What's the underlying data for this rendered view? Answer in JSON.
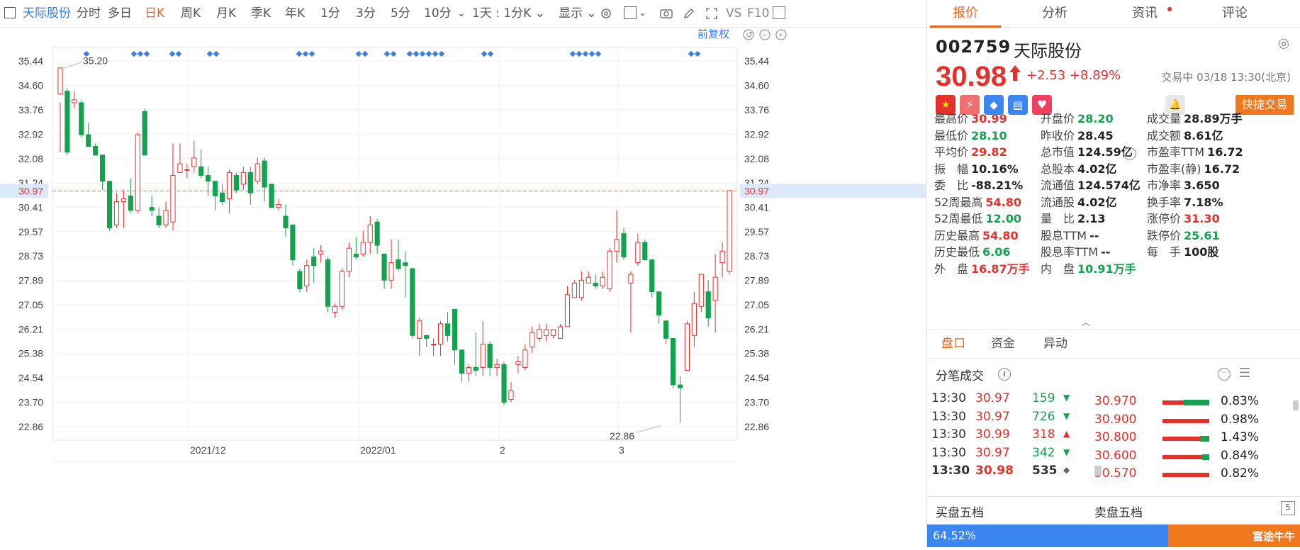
{
  "topbar": {
    "stock_name": "天际股份",
    "periods": [
      "分时",
      "多日",
      "日K",
      "周K",
      "月K",
      "季K",
      "年K",
      "1分",
      "3分",
      "5分",
      "10分"
    ],
    "active_period": "日K",
    "interval_select": "1天 : 1分K",
    "display_label": "显示",
    "vs_label": "VS",
    "f10_label": "F10"
  },
  "chart": {
    "adjust_label": "前复权",
    "y_ticks": [
      "35.44",
      "34.60",
      "33.76",
      "32.92",
      "32.08",
      "31.24",
      "30.41",
      "29.57",
      "28.73",
      "27.89",
      "27.05",
      "26.21",
      "25.38",
      "24.54",
      "23.70",
      "22.86"
    ],
    "current_line_label": "30.97",
    "x_labels": [
      "2021/12",
      "2022/01",
      "2",
      "3"
    ],
    "max_label": "35.20",
    "min_label": "22.86",
    "colors": {
      "up": "#e5302c",
      "down": "#13a24f",
      "marker": "#3b7de9"
    }
  },
  "chart_data": {
    "type": "candlestick",
    "y_range": [
      22.4,
      35.9
    ],
    "candles": [
      [
        34.3,
        35.2,
        34.0,
        32.3
      ],
      [
        34.4,
        32.3,
        34.5,
        32.2
      ],
      [
        34.0,
        34.1,
        34.4,
        33.8
      ],
      [
        34.0,
        32.9,
        34.1,
        32.8
      ],
      [
        32.9,
        32.5,
        33.3,
        32.5
      ],
      [
        32.5,
        32.2,
        32.6,
        32.2
      ],
      [
        32.2,
        31.3,
        32.2,
        31.0
      ],
      [
        31.3,
        29.7,
        31.3,
        29.6
      ],
      [
        29.8,
        30.6,
        30.9,
        29.7
      ],
      [
        30.6,
        30.7,
        31.0,
        29.7
      ],
      [
        30.8,
        30.3,
        31.4,
        30.2
      ],
      [
        30.3,
        32.9,
        33.0,
        30.2
      ],
      [
        33.7,
        32.2,
        33.8,
        32.2
      ],
      [
        30.4,
        30.3,
        30.8,
        30.1
      ],
      [
        30.1,
        29.8,
        30.4,
        29.7
      ],
      [
        29.8,
        30.3,
        30.6,
        29.7
      ],
      [
        29.9,
        31.5,
        32.6,
        29.6
      ],
      [
        31.6,
        31.9,
        32.6,
        31.6
      ],
      [
        31.7,
        31.7,
        31.9,
        31.4
      ],
      [
        31.8,
        32.1,
        32.7,
        31.6
      ],
      [
        31.8,
        31.5,
        32.4,
        31.4
      ],
      [
        31.5,
        31.3,
        31.8,
        30.8
      ],
      [
        31.3,
        30.8,
        31.3,
        30.3
      ],
      [
        30.9,
        30.6,
        31.2,
        30.5
      ],
      [
        30.7,
        31.6,
        31.7,
        30.2
      ],
      [
        31.5,
        31.0,
        31.6,
        30.9
      ],
      [
        31.2,
        31.6,
        31.8,
        31.0
      ],
      [
        31.6,
        30.9,
        31.8,
        30.5
      ],
      [
        31.3,
        31.9,
        32.1,
        31.2
      ],
      [
        32.0,
        31.1,
        32.1,
        30.6
      ],
      [
        31.2,
        30.4,
        31.2,
        30.4
      ],
      [
        30.4,
        30.5,
        30.7,
        30.3
      ],
      [
        30.1,
        29.7,
        30.5,
        29.4
      ],
      [
        29.8,
        28.6,
        29.8,
        28.4
      ],
      [
        28.2,
        27.6,
        28.3,
        27.5
      ],
      [
        27.7,
        28.4,
        28.6,
        27.5
      ],
      [
        28.7,
        28.4,
        29.0,
        27.8
      ],
      [
        28.8,
        28.9,
        29.1,
        28.5
      ],
      [
        28.6,
        27.0,
        28.7,
        26.8
      ],
      [
        26.8,
        27.0,
        27.1,
        26.6
      ],
      [
        27.0,
        28.2,
        28.3,
        26.9
      ],
      [
        28.2,
        29.0,
        29.2,
        28.0
      ],
      [
        28.8,
        28.7,
        29.4,
        28.6
      ],
      [
        28.8,
        29.2,
        29.6,
        28.7
      ],
      [
        29.2,
        29.8,
        30.1,
        28.8
      ],
      [
        29.9,
        29.1,
        30.0,
        28.8
      ],
      [
        28.8,
        27.9,
        28.8,
        27.6
      ],
      [
        27.9,
        28.5,
        29.3,
        27.6
      ],
      [
        28.6,
        28.3,
        29.3,
        28.2
      ],
      [
        28.5,
        28.4,
        28.9,
        27.3
      ],
      [
        28.3,
        26.0,
        28.3,
        25.9
      ],
      [
        25.9,
        26.5,
        26.6,
        25.3
      ],
      [
        26.0,
        25.9,
        26.0,
        25.6
      ],
      [
        25.7,
        25.7,
        25.9,
        25.3
      ],
      [
        25.7,
        26.4,
        26.5,
        25.3
      ],
      [
        26.4,
        26.0,
        26.8,
        25.8
      ],
      [
        26.9,
        25.5,
        26.9,
        25.0
      ],
      [
        25.5,
        24.7,
        25.5,
        24.4
      ],
      [
        24.7,
        24.9,
        25.0,
        24.4
      ],
      [
        24.9,
        24.8,
        26.1,
        24.6
      ],
      [
        24.9,
        25.7,
        26.5,
        24.6
      ],
      [
        25.7,
        24.9,
        25.8,
        24.6
      ],
      [
        24.9,
        25.0,
        25.2,
        24.6
      ],
      [
        25.0,
        23.7,
        25.1,
        23.6
      ],
      [
        23.8,
        24.1,
        24.4,
        23.7
      ],
      [
        25.0,
        25.1,
        25.3,
        24.7
      ],
      [
        24.9,
        25.5,
        25.7,
        24.8
      ],
      [
        25.6,
        26.1,
        26.3,
        25.4
      ],
      [
        25.9,
        26.2,
        26.4,
        25.8
      ],
      [
        26.0,
        26.2,
        26.4,
        25.8
      ],
      [
        26.0,
        26.2,
        26.2,
        25.9
      ],
      [
        25.9,
        26.3,
        26.4,
        25.9
      ],
      [
        26.3,
        27.4,
        27.7,
        26.3
      ],
      [
        27.3,
        27.8,
        27.9,
        27.3
      ],
      [
        27.3,
        27.9,
        28.2,
        27.2
      ],
      [
        27.8,
        28.0,
        28.2,
        27.8
      ],
      [
        27.8,
        27.7,
        28.1,
        27.6
      ],
      [
        27.7,
        28.0,
        28.2,
        27.6
      ],
      [
        27.6,
        28.9,
        29.0,
        27.5
      ],
      [
        28.9,
        29.3,
        30.3,
        28.5
      ],
      [
        29.5,
        28.7,
        29.7,
        28.6
      ],
      [
        27.8,
        28.1,
        28.2,
        26.1
      ],
      [
        28.5,
        29.2,
        29.5,
        28.4
      ],
      [
        29.2,
        28.6,
        29.3,
        28.6
      ],
      [
        28.6,
        27.5,
        28.6,
        27.3
      ],
      [
        27.5,
        26.7,
        27.4,
        26.4
      ],
      [
        26.5,
        25.9,
        26.1,
        25.7
      ],
      [
        25.9,
        24.3,
        25.9,
        24.2
      ],
      [
        24.3,
        24.2,
        24.6,
        23.0
      ],
      [
        24.8,
        26.4,
        26.5,
        24.8
      ],
      [
        26.0,
        27.1,
        27.5,
        25.6
      ],
      [
        27.0,
        28.1,
        28.1,
        26.8
      ],
      [
        27.5,
        26.6,
        27.9,
        26.3
      ],
      [
        27.2,
        28.0,
        28.8,
        26.1
      ],
      [
        28.5,
        28.9,
        29.2,
        28.0
      ],
      [
        28.2,
        30.98,
        30.99,
        28.1
      ]
    ]
  },
  "quote": {
    "code": "002759",
    "name": "天际股份",
    "price": "30.98",
    "change": "+2.53",
    "change_pct": "+8.89%",
    "status": "交易中 03/18 13:30(北京)",
    "quick_trade": "快捷交易",
    "fields": [
      {
        "label": "最高价",
        "value": "30.99",
        "color": "red"
      },
      {
        "label": "开盘价",
        "value": "28.20",
        "color": "green"
      },
      {
        "label": "成交量",
        "value": "28.89万手",
        "color": "dark"
      },
      {
        "label": "最低价",
        "value": "28.10",
        "color": "green"
      },
      {
        "label": "昨收价",
        "value": "28.45",
        "color": "dark"
      },
      {
        "label": "成交额",
        "value": "8.61亿",
        "color": "dark"
      },
      {
        "label": "平均价",
        "value": "29.82",
        "color": "red"
      },
      {
        "label": "总市值",
        "value": "124.59亿",
        "color": "dark"
      },
      {
        "label": "市盈率TTM",
        "value": "16.72",
        "color": "dark"
      },
      {
        "label": "振　幅",
        "value": "10.16%",
        "color": "dark"
      },
      {
        "label": "总股本",
        "value": "4.02亿",
        "color": "dark"
      },
      {
        "label": "市盈率(静)",
        "value": "16.72",
        "color": "dark"
      },
      {
        "label": "委　比",
        "value": "-88.21%",
        "color": "dark"
      },
      {
        "label": "流通值",
        "value": "124.574亿",
        "color": "dark"
      },
      {
        "label": "市净率",
        "value": "3.650",
        "color": "dark"
      },
      {
        "label": "52周最高",
        "value": "54.80",
        "color": "red"
      },
      {
        "label": "流通股",
        "value": "4.02亿",
        "color": "dark"
      },
      {
        "label": "换手率",
        "value": "7.18%",
        "color": "dark"
      },
      {
        "label": "52周最低",
        "value": "12.00",
        "color": "green"
      },
      {
        "label": "量　比",
        "value": "2.13",
        "color": "dark"
      },
      {
        "label": "涨停价",
        "value": "31.30",
        "color": "red"
      },
      {
        "label": "历史最高",
        "value": "54.80",
        "color": "red"
      },
      {
        "label": "股息TTM",
        "value": "--",
        "color": "dark"
      },
      {
        "label": "跌停价",
        "value": "25.61",
        "color": "green"
      },
      {
        "label": "历史最低",
        "value": "6.06",
        "color": "green"
      },
      {
        "label": "股息率TTM",
        "value": "--",
        "color": "dark"
      },
      {
        "label": "每　手",
        "value": "100股",
        "color": "dark"
      },
      {
        "label": "外　盘",
        "value": "16.87万手",
        "color": "red"
      },
      {
        "label": "内　盘",
        "value": "10.91万手",
        "color": "green"
      }
    ]
  },
  "right_tabs": [
    "报价",
    "分析",
    "资讯",
    "评论"
  ],
  "section_tabs": [
    "盘口",
    "资金",
    "异动"
  ],
  "ticks_title": "分笔成交",
  "ticks": [
    {
      "time": "13:30",
      "price": "30.97",
      "vol": "159",
      "dir": "down"
    },
    {
      "time": "13:30",
      "price": "30.97",
      "vol": "726",
      "dir": "down"
    },
    {
      "time": "13:30",
      "price": "30.99",
      "vol": "318",
      "dir": "up"
    },
    {
      "time": "13:30",
      "price": "30.97",
      "vol": "342",
      "dir": "down"
    },
    {
      "time": "13:30",
      "price": "30.98",
      "vol": "535",
      "dir": "neutral"
    }
  ],
  "price_dist": [
    {
      "price": "30.970",
      "pct": "0.83%",
      "buy": 0.55
    },
    {
      "price": "30.900",
      "pct": "0.98%",
      "buy": 0.0
    },
    {
      "price": "30.800",
      "pct": "1.43%",
      "buy": 0.2
    },
    {
      "price": "30.600",
      "pct": "0.84%",
      "buy": 0.15
    },
    {
      "price": "30.570",
      "pct": "0.82%",
      "buy": 0.0
    }
  ],
  "order_book": {
    "buy_label": "买盘五档",
    "sell_label": "卖盘五档",
    "buy_pct": "64.52%",
    "buy_ratio": 0.6452,
    "logo": "富途牛牛"
  }
}
